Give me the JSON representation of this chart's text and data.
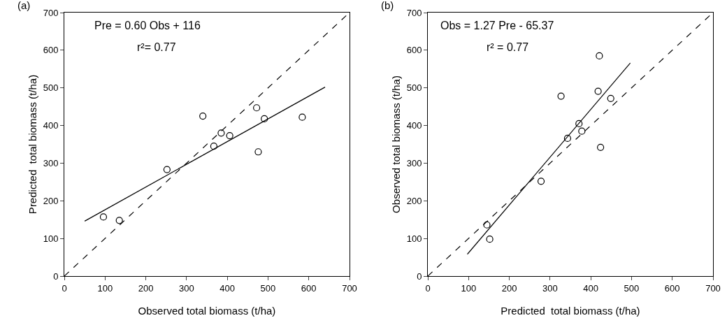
{
  "chart_data": [
    {
      "type": "scatter",
      "xlabel": "Observed total biomass (t/ha)",
      "ylabel": "Predicted  total biomass (t/ha)",
      "annotations": [
        "(a)",
        "Pre = 0.60 Obs + 116",
        "r²= 0.77"
      ],
      "xlim": [
        0,
        700
      ],
      "ylim": [
        0,
        700
      ],
      "xticks": [
        0,
        100,
        200,
        300,
        400,
        500,
        600,
        700
      ],
      "yticks": [
        0,
        100,
        200,
        300,
        400,
        500,
        600,
        700
      ],
      "grid": false,
      "series": [
        {
          "marker": "circle",
          "color": "#000000",
          "x": [
            96,
            135,
            252,
            340,
            367,
            385,
            406,
            472,
            476,
            491,
            584
          ],
          "values": [
            157,
            148,
            283,
            425,
            345,
            380,
            373,
            447,
            330,
            418,
            422
          ]
        },
        {
          "type": "line",
          "color": "#000000",
          "line_style": "solid",
          "x": [
            50,
            640
          ],
          "values": [
            146,
            502
          ]
        },
        {
          "type": "line",
          "color": "#000000",
          "line_style": "dashed",
          "x": [
            0,
            700
          ],
          "values": [
            0,
            700
          ]
        }
      ]
    },
    {
      "type": "scatter",
      "xlabel": "Predicted  total biomass (t/ha)",
      "ylabel": "Observed total biomass (t/ha)",
      "annotations": [
        "(b)",
        "Obs = 1.27 Pre - 65.37",
        "r² = 0.77"
      ],
      "xlim": [
        0,
        700
      ],
      "ylim": [
        0,
        700
      ],
      "xticks": [
        0,
        100,
        200,
        300,
        400,
        500,
        600,
        700
      ],
      "yticks": [
        0,
        100,
        200,
        300,
        400,
        500,
        600,
        700
      ],
      "grid": false,
      "series": [
        {
          "marker": "circle",
          "color": "#000000",
          "x": [
            145,
            152,
            278,
            327,
            343,
            371,
            378,
            418,
            421,
            424,
            449
          ],
          "values": [
            136,
            98,
            252,
            478,
            366,
            405,
            385,
            491,
            585,
            342,
            472
          ]
        },
        {
          "type": "line",
          "color": "#000000",
          "line_style": "solid",
          "x": [
            97,
            497
          ],
          "values": [
            58,
            566
          ]
        },
        {
          "type": "line",
          "color": "#000000",
          "line_style": "dashed",
          "x": [
            0,
            700
          ],
          "values": [
            0,
            700
          ]
        }
      ]
    }
  ]
}
